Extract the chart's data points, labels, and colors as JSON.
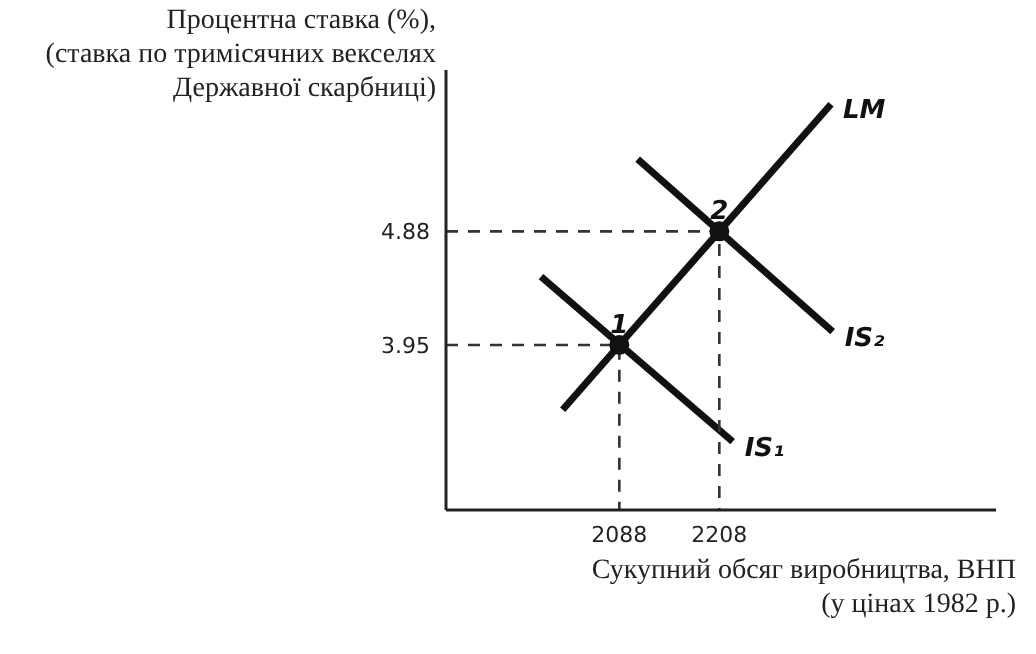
{
  "chart_data": {
    "type": "line",
    "ylabel": "Процентна ставка (%),\n(ставка по тримісячних векселях\nДержавної скарбниці)",
    "xlabel": "Сукупний обсяг виробництва, ВНП\n(у цінах 1982 р.)",
    "xlim": [
      1880,
      2540
    ],
    "ylim": [
      2.6,
      6.2
    ],
    "xticks": [
      2088,
      2208
    ],
    "yticks": [
      3.95,
      4.88
    ],
    "grid": false,
    "legend": false,
    "marker": "none",
    "line_style": "solid",
    "series": [
      {
        "name": "LM",
        "color": "#111111",
        "x": [
          2020,
          2088,
          2208,
          2342
        ],
        "values": [
          3.42,
          3.95,
          4.88,
          5.92
        ]
      },
      {
        "name": "IS₁",
        "color": "#111111",
        "x": [
          1994,
          2224
        ],
        "values": [
          4.51,
          3.16
        ]
      },
      {
        "name": "IS₂",
        "color": "#111111",
        "x": [
          2110,
          2344
        ],
        "values": [
          5.47,
          4.06
        ]
      },
      {
        "color": "#333333",
        "line_style": "dashed",
        "x": [
          1880,
          2088,
          2088
        ],
        "values": [
          3.95,
          3.95,
          2.6
        ]
      },
      {
        "color": "#333333",
        "line_style": "dashed",
        "x": [
          1880,
          2208,
          2208
        ],
        "values": [
          4.88,
          4.88,
          2.6
        ]
      },
      {
        "type": "scatter",
        "color": "#111111",
        "marker": "circle",
        "x": [
          2088,
          2208
        ],
        "values": [
          3.95,
          4.88
        ]
      }
    ],
    "annotations": [
      {
        "text": "1",
        "x": 2088,
        "y": 3.95
      },
      {
        "text": "2",
        "x": 2208,
        "y": 4.88
      }
    ]
  }
}
